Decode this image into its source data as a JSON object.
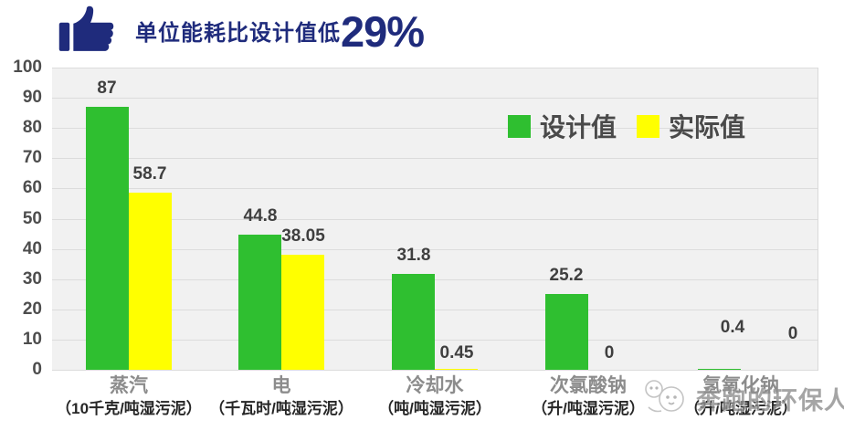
{
  "colors": {
    "title": "#1f2b7c",
    "design": "#2fbf30",
    "actual": "#ffff00"
  },
  "header": {
    "title_prefix": "单位能耗比设计值低",
    "title_highlight": "29%"
  },
  "legend": {
    "items": [
      {
        "label": "设计值"
      },
      {
        "label": "实际值"
      }
    ]
  },
  "watermark": {
    "text": "奔跑的环保人"
  },
  "chart_data": {
    "type": "bar",
    "title": "单位能耗比设计值低29%",
    "categories": [
      {
        "name": "蒸汽",
        "unit": "（10千克/吨湿污泥）"
      },
      {
        "name": "电",
        "unit": "（千瓦时/吨湿污泥）"
      },
      {
        "name": "冷却水",
        "unit": "（吨/吨湿污泥）"
      },
      {
        "name": "次氯酸钠",
        "unit": "（升/吨湿污泥）"
      },
      {
        "name": "氢氧化钠",
        "unit": "（升/吨湿污泥）"
      }
    ],
    "series": [
      {
        "name": "设计值",
        "color": "#2fbf30",
        "values": [
          87,
          44.8,
          31.8,
          25.2,
          0.4
        ],
        "labels": [
          "87",
          "44.8",
          "31.8",
          "25.2",
          "0.4"
        ]
      },
      {
        "name": "实际值",
        "color": "#ffff00",
        "values": [
          58.7,
          38.05,
          0.45,
          0,
          0
        ],
        "labels": [
          "58.7",
          "38.05",
          "0.45",
          "0",
          "0"
        ]
      }
    ],
    "ylim": [
      0,
      100
    ],
    "ytick_step": 10,
    "yticks": [
      "100",
      "90",
      "80",
      "70",
      "60",
      "50",
      "40",
      "30",
      "20",
      "10",
      "0"
    ],
    "grid": true,
    "legend_position": "inside-top-right"
  }
}
